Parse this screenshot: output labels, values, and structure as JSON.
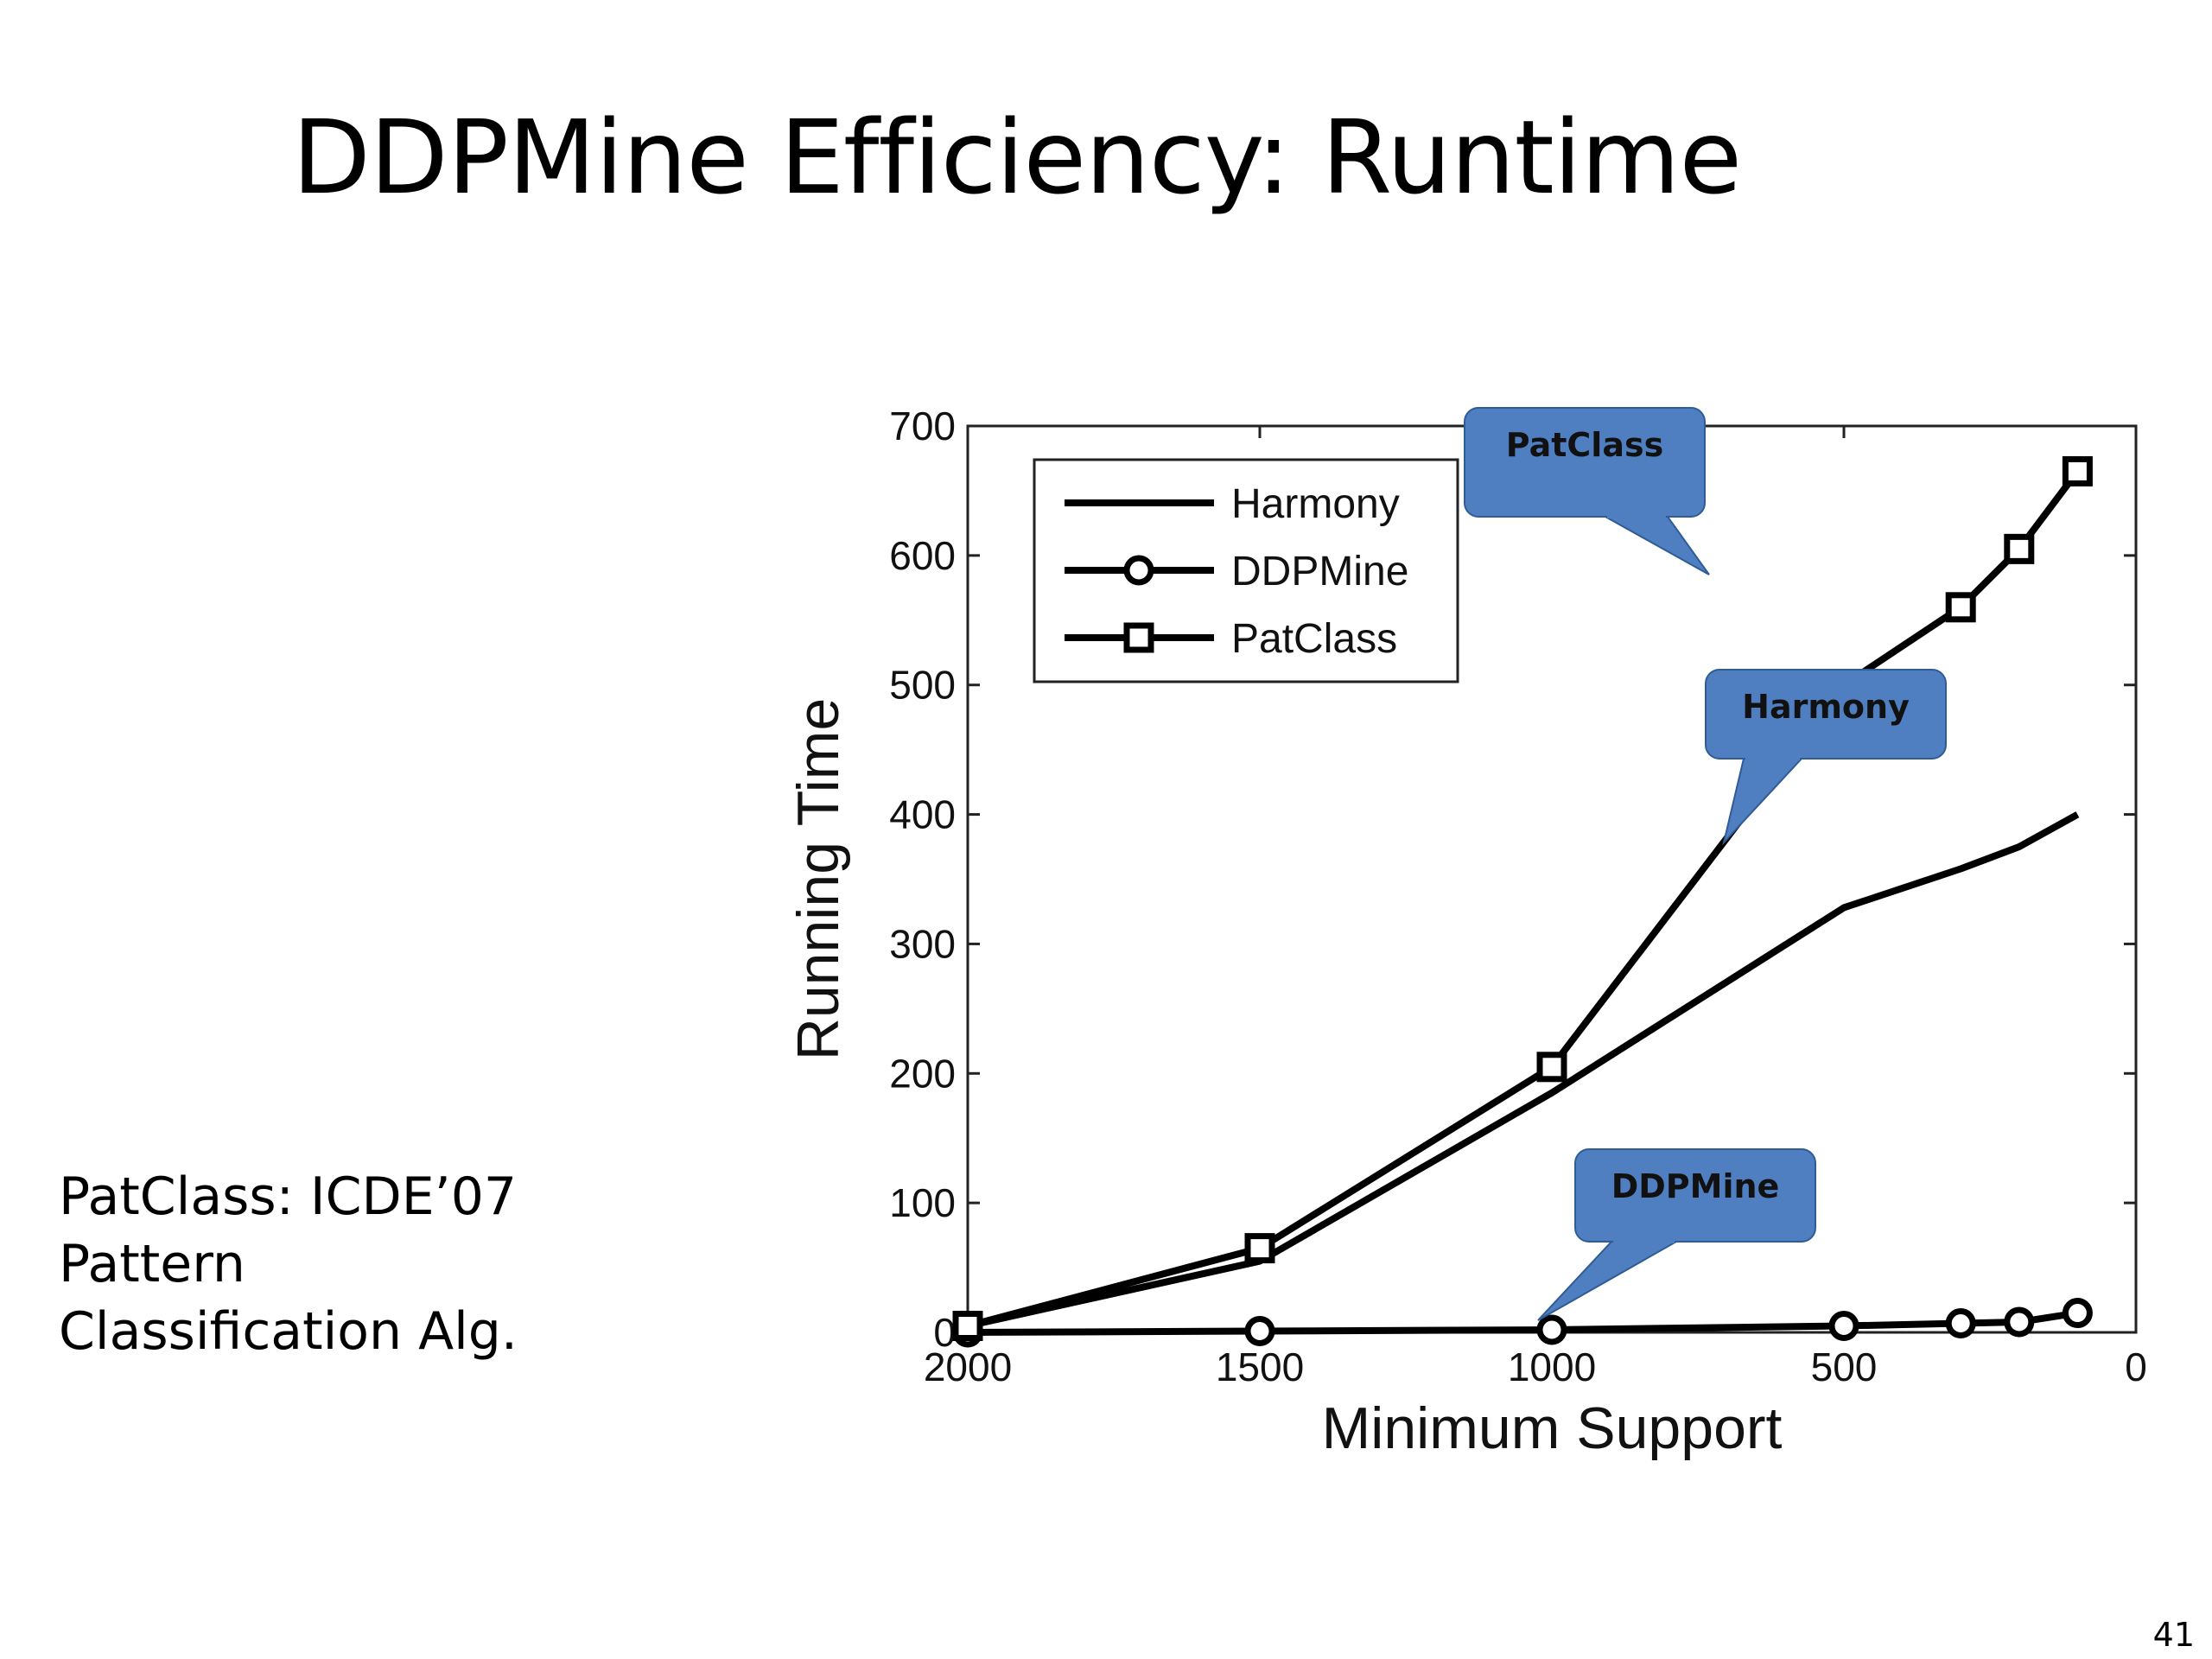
{
  "slide": {
    "title": "DDPMine Efficiency: Runtime",
    "side_note": [
      "PatClass: ICDE’07",
      "Pattern",
      "Classification Alg."
    ],
    "page_number": "41"
  },
  "colors": {
    "line": "#000000",
    "callout_fill": "#4f7fc1",
    "callout_stroke": "#2f5c95"
  },
  "chart_data": {
    "type": "line",
    "title": "",
    "xlabel": "Minimum Support",
    "ylabel": "Running Time",
    "xlim": [
      2000,
      0
    ],
    "x_reversed": true,
    "ylim": [
      0,
      700
    ],
    "xticks": [
      2000,
      1500,
      1000,
      500,
      0
    ],
    "yticks": [
      0,
      100,
      200,
      300,
      400,
      500,
      600,
      700
    ],
    "grid": false,
    "legend_position": "top-left",
    "series": [
      {
        "name": "Harmony",
        "marker": "none",
        "x": [
          2000,
          1500,
          1000,
          500,
          300,
          200,
          100
        ],
        "y": [
          5,
          55,
          185,
          328,
          358,
          375,
          400
        ]
      },
      {
        "name": "DDPMine",
        "marker": "circle",
        "x": [
          2000,
          1500,
          1000,
          500,
          300,
          200,
          100
        ],
        "y": [
          0,
          1,
          2,
          5,
          7,
          8,
          15
        ]
      },
      {
        "name": "PatClass",
        "marker": "square",
        "x": [
          2000,
          1500,
          1000,
          500,
          300,
          200,
          100
        ],
        "y": [
          5,
          65,
          205,
          500,
          560,
          605,
          665
        ]
      }
    ],
    "annotations": [
      {
        "text": "PatClass",
        "target_series": "PatClass"
      },
      {
        "text": "Harmony",
        "target_series": "Harmony"
      },
      {
        "text": "DDPMine",
        "target_series": "DDPMine"
      }
    ]
  }
}
